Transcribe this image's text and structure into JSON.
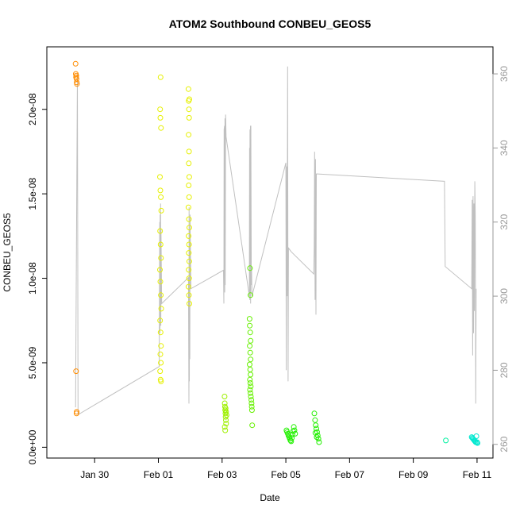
{
  "chart_data": {
    "type": "scatter",
    "title": "ATOM2 Southbound CONBEU_GEOS5",
    "xlabel": "Date",
    "ylabel": "CONBEU_GEOS5",
    "x_ticks": [
      "Jan 30",
      "Feb 01",
      "Feb 03",
      "Feb 05",
      "Feb 07",
      "Feb 09",
      "Feb 11"
    ],
    "y_ticks": [
      "0.0e+00",
      "5.0e-09",
      "1.0e-08",
      "1.5e-08",
      "2.0e-08"
    ],
    "y2_ticks": [
      "260",
      "280",
      "300",
      "320",
      "340",
      "360"
    ],
    "xlim": [
      "2017-01-28T12:00",
      "2017-02-11T12:00"
    ],
    "ylim": [
      -6.4e-10,
      2.37e-08
    ],
    "y2lim": [
      256.3,
      367.3
    ],
    "point_style": "open circles",
    "series": [
      {
        "color": "#ff8c00",
        "points": [
          [
            "2017-01-29T09:40",
            2.27e-08
          ],
          [
            "2017-01-29T09:50",
            2.21e-08
          ],
          [
            "2017-01-29T10:00",
            2.19e-08
          ],
          [
            "2017-01-29T10:10",
            2.2e-08
          ],
          [
            "2017-01-29T10:20",
            2.18e-08
          ],
          [
            "2017-01-29T10:30",
            2.16e-08
          ],
          [
            "2017-01-29T10:40",
            2.15e-08
          ],
          [
            "2017-01-29T10:00",
            4.5e-09
          ],
          [
            "2017-01-29T10:20",
            2e-09
          ],
          [
            "2017-01-29T10:30",
            2.1e-09
          ]
        ]
      },
      {
        "color": "#e6f000",
        "points": [
          [
            "2017-02-01T01:20",
            2e-08
          ],
          [
            "2017-02-01T01:30",
            1.95e-08
          ],
          [
            "2017-02-01T01:40",
            2.19e-08
          ],
          [
            "2017-02-01T02:00",
            1.89e-08
          ],
          [
            "2017-02-01T01:10",
            1.6e-08
          ],
          [
            "2017-02-01T01:30",
            1.52e-08
          ],
          [
            "2017-02-01T01:50",
            1.48e-08
          ],
          [
            "2017-02-01T02:10",
            1.4e-08
          ],
          [
            "2017-02-01T01:20",
            1.28e-08
          ],
          [
            "2017-02-01T01:40",
            1.2e-08
          ],
          [
            "2017-02-01T02:00",
            1.12e-08
          ],
          [
            "2017-02-01T01:10",
            1.05e-08
          ],
          [
            "2017-02-01T01:30",
            9.8e-09
          ],
          [
            "2017-02-01T01:50",
            9e-09
          ],
          [
            "2017-02-01T02:10",
            8.2e-09
          ],
          [
            "2017-02-01T01:20",
            7.5e-09
          ],
          [
            "2017-02-01T01:40",
            6.8e-09
          ],
          [
            "2017-02-01T02:00",
            6e-09
          ],
          [
            "2017-02-01T01:30",
            5.5e-09
          ],
          [
            "2017-02-01T01:50",
            5e-09
          ],
          [
            "2017-02-01T01:20",
            4.5e-09
          ],
          [
            "2017-02-01T01:40",
            4e-09
          ],
          [
            "2017-02-01T02:00",
            3.9e-09
          ],
          [
            "2017-02-01T22:40",
            2.12e-08
          ],
          [
            "2017-02-01T22:50",
            2.05e-08
          ],
          [
            "2017-02-01T23:00",
            2e-08
          ],
          [
            "2017-02-01T23:10",
            1.95e-08
          ],
          [
            "2017-02-01T23:20",
            2.06e-08
          ],
          [
            "2017-02-01T22:45",
            1.85e-08
          ],
          [
            "2017-02-01T23:05",
            1.75e-08
          ],
          [
            "2017-02-01T22:55",
            1.68e-08
          ],
          [
            "2017-02-01T23:15",
            1.6e-08
          ],
          [
            "2017-02-01T22:50",
            1.55e-08
          ],
          [
            "2017-02-01T23:10",
            1.48e-08
          ],
          [
            "2017-02-01T22:40",
            1.42e-08
          ],
          [
            "2017-02-01T23:00",
            1.35e-08
          ],
          [
            "2017-02-01T23:20",
            1.3e-08
          ],
          [
            "2017-02-01T22:45",
            1.25e-08
          ],
          [
            "2017-02-01T23:05",
            1.2e-08
          ],
          [
            "2017-02-01T22:55",
            1.15e-08
          ],
          [
            "2017-02-01T23:15",
            1.1e-08
          ],
          [
            "2017-02-01T22:50",
            1.05e-08
          ],
          [
            "2017-02-01T23:10",
            1e-08
          ],
          [
            "2017-02-01T22:40",
            9.5e-09
          ],
          [
            "2017-02-01T23:00",
            9e-09
          ],
          [
            "2017-02-01T23:20",
            8.5e-09
          ]
        ]
      },
      {
        "color": "#9ef000",
        "points": [
          [
            "2017-02-03T01:50",
            3e-09
          ],
          [
            "2017-02-03T02:00",
            2.6e-09
          ],
          [
            "2017-02-03T02:10",
            2.4e-09
          ],
          [
            "2017-02-03T02:20",
            2.2e-09
          ],
          [
            "2017-02-03T02:30",
            2e-09
          ],
          [
            "2017-02-03T02:40",
            1.8e-09
          ],
          [
            "2017-02-03T02:50",
            1.6e-09
          ],
          [
            "2017-02-03T03:00",
            1.4e-09
          ],
          [
            "2017-02-03T02:00",
            1.2e-09
          ],
          [
            "2017-02-03T02:20",
            1e-09
          ],
          [
            "2017-02-03T02:40",
            2.3e-09
          ],
          [
            "2017-02-03T03:00",
            2.1e-09
          ],
          [
            "2017-02-03T03:20",
            1.9e-09
          ]
        ]
      },
      {
        "color": "#66f000",
        "points": [
          [
            "2017-02-03T21:00",
            1.06e-08
          ],
          [
            "2017-02-03T21:20",
            9e-09
          ],
          [
            "2017-02-03T20:40",
            7.6e-09
          ],
          [
            "2017-02-03T20:50",
            7.2e-09
          ],
          [
            "2017-02-03T21:10",
            6.8e-09
          ],
          [
            "2017-02-03T21:30",
            6.3e-09
          ],
          [
            "2017-02-03T20:50",
            6e-09
          ],
          [
            "2017-02-03T21:10",
            5.6e-09
          ],
          [
            "2017-02-03T21:30",
            5.2e-09
          ],
          [
            "2017-02-03T20:45",
            4.9e-09
          ],
          [
            "2017-02-03T21:05",
            4.6e-09
          ],
          [
            "2017-02-03T21:25",
            4.3e-09
          ],
          [
            "2017-02-03T20:55",
            4e-09
          ],
          [
            "2017-02-03T21:15",
            3.8e-09
          ],
          [
            "2017-02-03T21:35",
            3.6e-09
          ],
          [
            "2017-02-03T21:00",
            3.4e-09
          ],
          [
            "2017-02-03T21:20",
            3.2e-09
          ],
          [
            "2017-02-03T21:40",
            3e-09
          ],
          [
            "2017-02-03T22:00",
            2.8e-09
          ],
          [
            "2017-02-03T22:10",
            2.6e-09
          ],
          [
            "2017-02-03T22:20",
            2.4e-09
          ],
          [
            "2017-02-03T22:30",
            2.2e-09
          ],
          [
            "2017-02-03T22:40",
            1.3e-09
          ]
        ]
      },
      {
        "color": "#22f000",
        "points": [
          [
            "2017-02-05T00:30",
            1e-09
          ],
          [
            "2017-02-05T01:00",
            9e-10
          ],
          [
            "2017-02-05T01:30",
            8e-10
          ],
          [
            "2017-02-05T02:00",
            7e-10
          ],
          [
            "2017-02-05T02:30",
            6e-10
          ],
          [
            "2017-02-05T03:00",
            5e-10
          ],
          [
            "2017-02-05T03:30",
            4e-10
          ],
          [
            "2017-02-05T04:00",
            3.5e-10
          ],
          [
            "2017-02-05T04:30",
            5.5e-10
          ],
          [
            "2017-02-05T05:00",
            7.5e-10
          ],
          [
            "2017-02-05T05:30",
            9.5e-10
          ],
          [
            "2017-02-05T06:00",
            1.2e-09
          ],
          [
            "2017-02-05T06:30",
            1e-09
          ],
          [
            "2017-02-05T07:00",
            8e-10
          ],
          [
            "2017-02-05T21:30",
            2e-09
          ],
          [
            "2017-02-05T22:00",
            1.6e-09
          ],
          [
            "2017-02-05T22:30",
            1.3e-09
          ],
          [
            "2017-02-05T23:00",
            1.1e-09
          ],
          [
            "2017-02-05T23:30",
            9e-10
          ],
          [
            "2017-02-06T00:00",
            7e-10
          ],
          [
            "2017-02-06T00:30",
            5e-10
          ],
          [
            "2017-02-06T01:00",
            3e-10
          ],
          [
            "2017-02-05T22:15",
            8.5e-10
          ],
          [
            "2017-02-05T23:15",
            6e-10
          ]
        ]
      },
      {
        "color": "#00f0a0",
        "points": [
          [
            "2017-02-10T00:30",
            4e-10
          ]
        ]
      },
      {
        "color": "#00e8d0",
        "points": [
          [
            "2017-02-10T20:00",
            6e-10
          ],
          [
            "2017-02-10T20:30",
            5.5e-10
          ],
          [
            "2017-02-10T21:00",
            5e-10
          ],
          [
            "2017-02-10T21:30",
            4.5e-10
          ],
          [
            "2017-02-10T22:00",
            4e-10
          ],
          [
            "2017-02-10T22:30",
            3.5e-10
          ],
          [
            "2017-02-10T23:00",
            3e-10
          ],
          [
            "2017-02-10T23:30",
            6.5e-10
          ],
          [
            "2017-02-11T00:00",
            3e-10
          ],
          [
            "2017-02-11T00:20",
            2.5e-10
          ]
        ]
      }
    ],
    "secondary_line": {
      "color": "#c0c0c0",
      "points": [
        [
          "2017-01-29T09:40",
          270
        ],
        [
          "2017-01-29T11:00",
          360
        ],
        [
          "2017-01-29T11:30",
          268
        ],
        [
          "2017-02-01T00:40",
          281
        ],
        [
          "2017-02-01T01:00",
          320
        ],
        [
          "2017-02-01T01:10",
          290
        ],
        [
          "2017-02-01T01:20",
          322
        ],
        [
          "2017-02-01T01:30",
          297
        ],
        [
          "2017-02-01T01:40",
          325
        ],
        [
          "2017-02-01T01:50",
          292
        ],
        [
          "2017-02-01T02:00",
          318
        ],
        [
          "2017-02-01T02:30",
          298
        ],
        [
          "2017-02-01T22:40",
          305
        ],
        [
          "2017-02-01T23:00",
          271
        ],
        [
          "2017-02-01T23:10",
          324
        ],
        [
          "2017-02-01T23:20",
          277
        ],
        [
          "2017-02-01T23:30",
          318
        ],
        [
          "2017-02-01T23:40",
          283
        ],
        [
          "2017-02-01T23:50",
          322
        ],
        [
          "2017-02-02T00:00",
          317
        ],
        [
          "2017-02-02T00:30",
          302
        ],
        [
          "2017-02-03T01:00",
          307
        ],
        [
          "2017-02-03T01:20",
          298
        ],
        [
          "2017-02-03T01:30",
          345
        ],
        [
          "2017-02-03T01:50",
          346
        ],
        [
          "2017-02-03T02:00",
          301
        ],
        [
          "2017-02-03T02:10",
          348
        ],
        [
          "2017-02-03T02:20",
          303
        ],
        [
          "2017-02-03T02:40",
          349
        ],
        [
          "2017-02-03T03:00",
          343
        ],
        [
          "2017-02-03T20:30",
          300
        ],
        [
          "2017-02-03T20:40",
          340
        ],
        [
          "2017-02-03T20:50",
          299
        ],
        [
          "2017-02-03T21:00",
          345
        ],
        [
          "2017-02-03T21:10",
          301
        ],
        [
          "2017-02-03T21:20",
          346
        ],
        [
          "2017-02-03T21:30",
          298
        ],
        [
          "2017-02-03T21:40",
          346
        ],
        [
          "2017-02-03T22:00",
          303
        ],
        [
          "2017-02-03T22:10",
          308
        ],
        [
          "2017-02-03T22:30",
          300
        ],
        [
          "2017-02-05T00:00",
          336
        ],
        [
          "2017-02-05T00:20",
          280
        ],
        [
          "2017-02-05T00:40",
          335
        ],
        [
          "2017-02-05T01:00",
          300
        ],
        [
          "2017-02-05T01:20",
          362
        ],
        [
          "2017-02-05T01:40",
          277
        ],
        [
          "2017-02-05T02:00",
          313
        ],
        [
          "2017-02-05T04:00",
          312
        ],
        [
          "2017-02-05T21:00",
          306
        ],
        [
          "2017-02-05T21:20",
          313
        ],
        [
          "2017-02-05T21:40",
          339
        ],
        [
          "2017-02-05T22:00",
          299
        ],
        [
          "2017-02-05T22:20",
          337
        ],
        [
          "2017-02-05T22:40",
          295
        ],
        [
          "2017-02-05T23:00",
          333
        ],
        [
          "2017-02-06T00:00",
          333
        ],
        [
          "2017-02-09T23:30",
          331
        ],
        [
          "2017-02-10T00:00",
          308
        ],
        [
          "2017-02-10T20:00",
          302
        ],
        [
          "2017-02-10T20:20",
          326
        ],
        [
          "2017-02-10T20:40",
          284
        ],
        [
          "2017-02-10T21:00",
          327
        ],
        [
          "2017-02-10T21:20",
          290
        ],
        [
          "2017-02-10T21:40",
          325
        ],
        [
          "2017-02-10T22:00",
          296
        ],
        [
          "2017-02-10T22:20",
          331
        ],
        [
          "2017-02-10T22:40",
          322
        ],
        [
          "2017-02-10T23:00",
          271
        ],
        [
          "2017-02-10T23:20",
          302
        ]
      ]
    }
  }
}
